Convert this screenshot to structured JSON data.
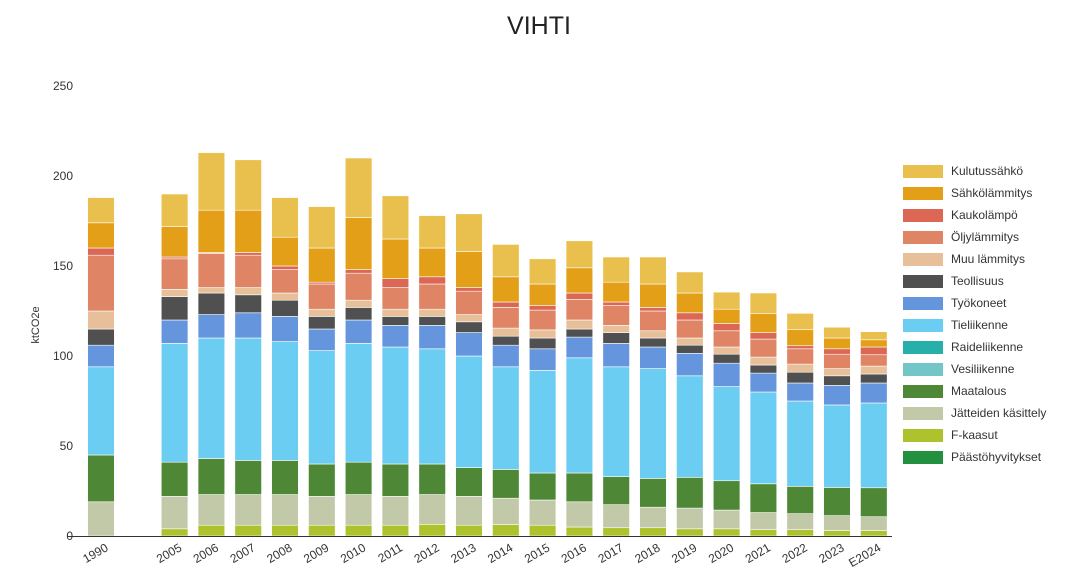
{
  "chart_data": {
    "type": "bar",
    "stacked": true,
    "title": "VIHTI",
    "ylabel": "ktCO2e",
    "xlabel": "",
    "ylim": [
      0,
      250
    ],
    "yticks": [
      "0",
      "50",
      "100",
      "150",
      "200",
      "250"
    ],
    "categories": [
      "1990",
      "2005",
      "2006",
      "2007",
      "2008",
      "2009",
      "2010",
      "2011",
      "2012",
      "2013",
      "2014",
      "2015",
      "2016",
      "2017",
      "2018",
      "2019",
      "2020",
      "2021",
      "2022",
      "2023",
      "E2024"
    ],
    "legend_position": "right",
    "series": [
      {
        "name": "F-kaasut",
        "color": "#aec22d",
        "values": [
          0,
          4,
          6,
          6,
          6,
          6,
          6,
          6,
          6.5,
          6,
          6.3,
          6,
          5,
          4.6,
          4.6,
          4,
          4,
          3.5,
          3.5,
          3,
          3
        ]
      },
      {
        "name": "Jätteiden käsittely",
        "color": "#c1c9a9",
        "values": [
          19,
          18,
          17,
          17,
          17,
          16,
          17,
          16,
          16.5,
          16,
          14.7,
          14,
          14,
          12.8,
          11.4,
          11.5,
          10.4,
          9.5,
          8.9,
          8.3,
          7.7
        ]
      },
      {
        "name": "Maatalous",
        "color": "#4e8836",
        "values": [
          26,
          19,
          20,
          19,
          19,
          18,
          18,
          18,
          17,
          16,
          16,
          15,
          16,
          15.6,
          16,
          17.1,
          16.3,
          16,
          15.2,
          15.7,
          16.1
        ]
      },
      {
        "name": "Vesiliikenne",
        "color": "#72c6c8",
        "values": [
          0,
          0,
          0,
          0,
          0,
          0,
          0,
          0,
          0,
          0,
          0,
          0,
          0,
          0,
          0,
          0,
          0,
          0,
          0,
          0,
          0
        ]
      },
      {
        "name": "Raideliikenne",
        "color": "#26b0a9",
        "values": [
          0,
          0,
          0,
          0,
          0,
          0,
          0,
          0,
          0,
          0,
          0,
          0,
          0,
          0,
          0,
          0,
          0,
          0,
          0,
          0,
          0
        ]
      },
      {
        "name": "Tieliikenne",
        "color": "#6ccdf3",
        "values": [
          49,
          66,
          67,
          68,
          66,
          63,
          66,
          65,
          64,
          62,
          57,
          57,
          64,
          61,
          61,
          56.4,
          52.3,
          51,
          47.4,
          45.8,
          47.1
        ]
      },
      {
        "name": "Työkoneet",
        "color": "#6595dc",
        "values": [
          12,
          13,
          13,
          14,
          14,
          12,
          13,
          12,
          13,
          13,
          12,
          12,
          11.5,
          13,
          12,
          12.5,
          13,
          10.5,
          10,
          10.9,
          11.1
        ]
      },
      {
        "name": "Teollisuus",
        "color": "#505050",
        "values": [
          9,
          13,
          12,
          10,
          9,
          7,
          7,
          5,
          5,
          6,
          5,
          6,
          4.5,
          6,
          5,
          4.5,
          5,
          4.5,
          6,
          5.3,
          5
        ]
      },
      {
        "name": "Muu lämmitys",
        "color": "#e7bf98",
        "values": [
          10,
          4,
          3,
          4,
          4,
          4,
          4,
          4,
          4,
          4,
          4.5,
          4.5,
          5,
          4,
          4,
          4,
          4,
          4.4,
          4.5,
          4,
          4.4
        ]
      },
      {
        "name": "Öljylämmitys",
        "color": "#df8465",
        "values": [
          31,
          17,
          19,
          18,
          13,
          14,
          15,
          12,
          14,
          13,
          11.5,
          11,
          11.5,
          11,
          11,
          10,
          9,
          10,
          8.5,
          8,
          6.3
        ]
      },
      {
        "name": "Kaukolämpö",
        "color": "#dc6754",
        "values": [
          4,
          1,
          0.5,
          1.5,
          2,
          1,
          2,
          5,
          4,
          2,
          3,
          2.5,
          3.5,
          2,
          2,
          4,
          4,
          3.6,
          1.7,
          3,
          4.3
        ]
      },
      {
        "name": "Sähkölämmitys",
        "color": "#e39f17",
        "values": [
          14,
          17,
          23.5,
          23.5,
          16,
          19,
          29,
          22,
          16,
          20,
          14,
          12,
          14,
          11,
          13,
          11,
          8,
          10.7,
          8.9,
          6,
          4
        ]
      },
      {
        "name": "Kulutussähkö",
        "color": "#e9c04d",
        "values": [
          14,
          18,
          32,
          28,
          22,
          23,
          33,
          24,
          18,
          21,
          18,
          14,
          15,
          14,
          15,
          11.7,
          9.5,
          11.3,
          9.1,
          6,
          4.5
        ]
      },
      {
        "name": "Päästöhyvitykset",
        "color": "#239040",
        "values": [
          0,
          0,
          0,
          0,
          0,
          0,
          0,
          0,
          0,
          0,
          0,
          0,
          0,
          0,
          0,
          0,
          0,
          0,
          0,
          0,
          0
        ]
      }
    ],
    "legend_order": [
      "Kulutussähkö",
      "Sähkölämmitys",
      "Kaukolämpö",
      "Öljylämmitys",
      "Muu lämmitys",
      "Teollisuus",
      "Työkoneet",
      "Tieliikenne",
      "Raideliikenne",
      "Vesiliikenne",
      "Maatalous",
      "Jätteiden käsittely",
      "F-kaasut",
      "Päästöhyvitykset"
    ]
  }
}
